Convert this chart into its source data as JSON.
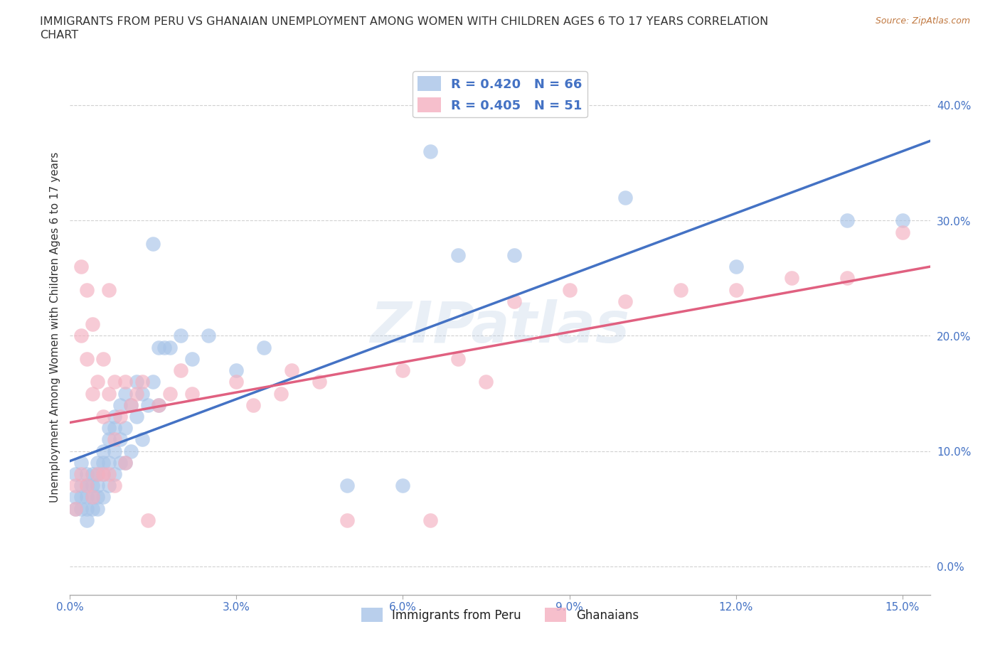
{
  "title_line1": "IMMIGRANTS FROM PERU VS GHANAIAN UNEMPLOYMENT AMONG WOMEN WITH CHILDREN AGES 6 TO 17 YEARS CORRELATION",
  "title_line2": "CHART",
  "source_text": "Source: ZipAtlas.com",
  "ylabel": "Unemployment Among Women with Children Ages 6 to 17 years",
  "xlim": [
    0.0,
    0.155
  ],
  "ylim": [
    -0.025,
    0.44
  ],
  "yticks": [
    0.0,
    0.1,
    0.2,
    0.3,
    0.4
  ],
  "ytick_labels": [
    "0.0%",
    "10.0%",
    "20.0%",
    "30.0%",
    "40.0%"
  ],
  "xticks": [
    0.0,
    0.03,
    0.06,
    0.09,
    0.12,
    0.15
  ],
  "xtick_labels": [
    "0.0%",
    "3.0%",
    "6.0%",
    "9.0%",
    "12.0%",
    "15.0%"
  ],
  "blue_color": "#a8c4e8",
  "pink_color": "#f4b0c0",
  "blue_line_color": "#4472c4",
  "pink_line_color": "#e06080",
  "watermark": "ZIPatlas",
  "peru_x": [
    0.001,
    0.001,
    0.001,
    0.002,
    0.002,
    0.002,
    0.002,
    0.003,
    0.003,
    0.003,
    0.003,
    0.003,
    0.004,
    0.004,
    0.004,
    0.004,
    0.005,
    0.005,
    0.005,
    0.005,
    0.005,
    0.006,
    0.006,
    0.006,
    0.006,
    0.007,
    0.007,
    0.007,
    0.007,
    0.008,
    0.008,
    0.008,
    0.008,
    0.009,
    0.009,
    0.009,
    0.01,
    0.01,
    0.01,
    0.011,
    0.011,
    0.012,
    0.012,
    0.013,
    0.013,
    0.014,
    0.015,
    0.015,
    0.016,
    0.016,
    0.017,
    0.018,
    0.02,
    0.022,
    0.025,
    0.03,
    0.035,
    0.05,
    0.06,
    0.065,
    0.07,
    0.08,
    0.1,
    0.12,
    0.14,
    0.15
  ],
  "peru_y": [
    0.08,
    0.06,
    0.05,
    0.07,
    0.09,
    0.06,
    0.05,
    0.08,
    0.07,
    0.06,
    0.05,
    0.04,
    0.08,
    0.07,
    0.06,
    0.05,
    0.09,
    0.08,
    0.07,
    0.06,
    0.05,
    0.1,
    0.09,
    0.08,
    0.06,
    0.12,
    0.11,
    0.09,
    0.07,
    0.13,
    0.12,
    0.1,
    0.08,
    0.14,
    0.11,
    0.09,
    0.15,
    0.12,
    0.09,
    0.14,
    0.1,
    0.16,
    0.13,
    0.15,
    0.11,
    0.14,
    0.28,
    0.16,
    0.19,
    0.14,
    0.19,
    0.19,
    0.2,
    0.18,
    0.2,
    0.17,
    0.19,
    0.07,
    0.07,
    0.36,
    0.27,
    0.27,
    0.32,
    0.26,
    0.3,
    0.3
  ],
  "ghana_x": [
    0.001,
    0.001,
    0.002,
    0.002,
    0.002,
    0.003,
    0.003,
    0.003,
    0.004,
    0.004,
    0.004,
    0.005,
    0.005,
    0.006,
    0.006,
    0.006,
    0.007,
    0.007,
    0.007,
    0.008,
    0.008,
    0.008,
    0.009,
    0.01,
    0.01,
    0.011,
    0.012,
    0.013,
    0.014,
    0.016,
    0.018,
    0.02,
    0.022,
    0.03,
    0.033,
    0.038,
    0.04,
    0.045,
    0.05,
    0.06,
    0.065,
    0.07,
    0.075,
    0.08,
    0.09,
    0.1,
    0.11,
    0.12,
    0.13,
    0.14,
    0.15
  ],
  "ghana_y": [
    0.07,
    0.05,
    0.26,
    0.2,
    0.08,
    0.24,
    0.18,
    0.07,
    0.21,
    0.15,
    0.06,
    0.16,
    0.08,
    0.18,
    0.13,
    0.08,
    0.24,
    0.15,
    0.08,
    0.16,
    0.11,
    0.07,
    0.13,
    0.16,
    0.09,
    0.14,
    0.15,
    0.16,
    0.04,
    0.14,
    0.15,
    0.17,
    0.15,
    0.16,
    0.14,
    0.15,
    0.17,
    0.16,
    0.04,
    0.17,
    0.04,
    0.18,
    0.16,
    0.23,
    0.24,
    0.23,
    0.24,
    0.24,
    0.25,
    0.25,
    0.29
  ]
}
